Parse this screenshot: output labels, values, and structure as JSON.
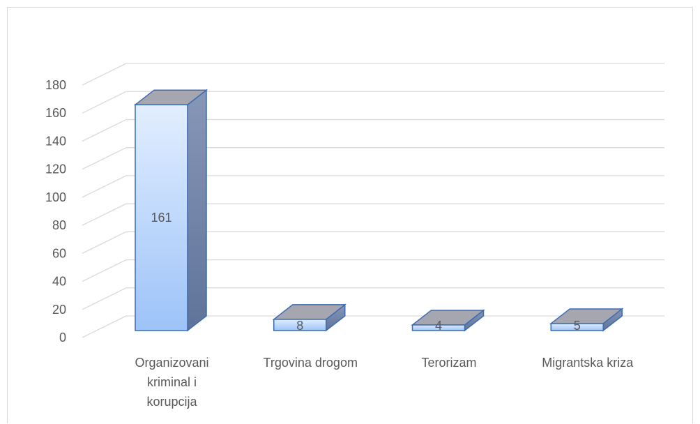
{
  "chart_data": {
    "type": "bar",
    "three_d": true,
    "categories": [
      [
        "Organizovani",
        "kriminal i",
        "korupcija"
      ],
      [
        "Trgovina drogom"
      ],
      [
        "Terorizam"
      ],
      [
        "Migrantska kriza"
      ]
    ],
    "values": [
      161,
      8,
      4,
      5
    ],
    "data_labels": [
      "161",
      "8",
      "4",
      "5"
    ],
    "y_ticks": [
      "0",
      "20",
      "40",
      "60",
      "80",
      "100",
      "120",
      "140",
      "160",
      "180"
    ],
    "ylim": [
      0,
      180
    ],
    "grid": true,
    "legend": false,
    "colors": {
      "bar_top": "#e2eeff",
      "bar_bottom": "#9dc3f8",
      "bar_side": "#6e81a6",
      "bar_cap": "#a6a6b0",
      "bar_edge": "#3c6bb3",
      "grid": "#d9d9d9",
      "text": "#595959"
    }
  }
}
